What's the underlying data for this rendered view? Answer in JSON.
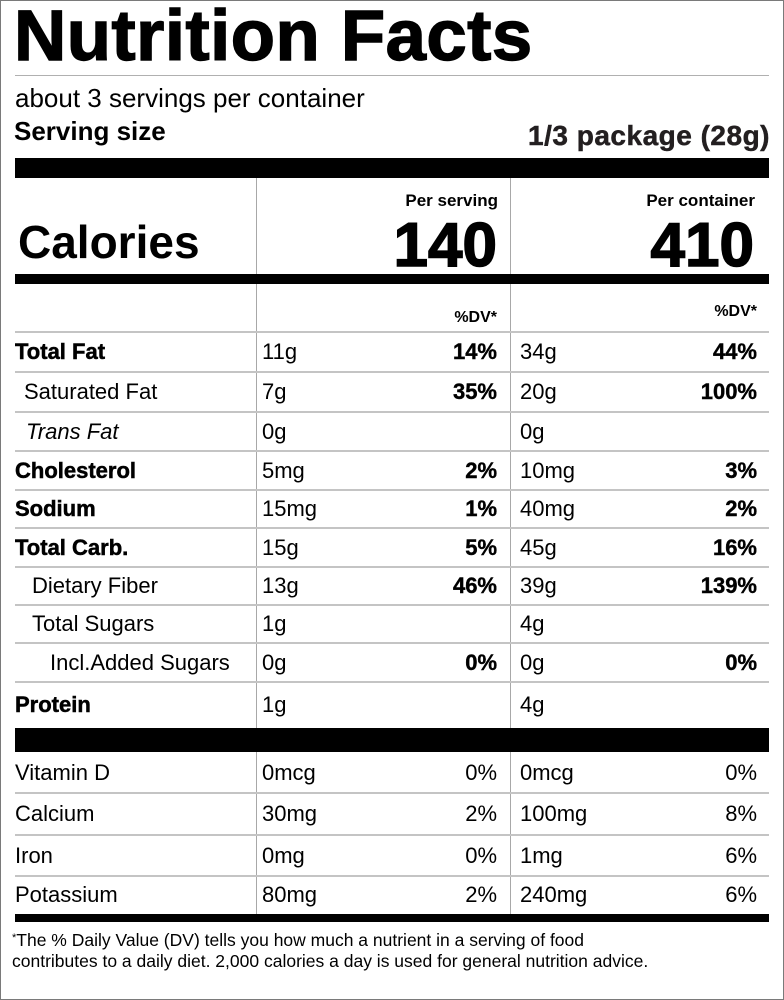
{
  "title": "Nutrition Facts",
  "servings_per_container": "about 3 servings per container",
  "serving_size": {
    "label": "Serving size",
    "value": "1/3 package (28g)"
  },
  "calories": {
    "label": "Calories",
    "per_serving_header": "Per serving",
    "per_container_header": "Per container",
    "per_serving": "140",
    "per_container": "410"
  },
  "dv_header": {
    "per_serving": "%DV*",
    "per_container": "%DV*"
  },
  "nutrients": [
    {
      "name": "Total Fat",
      "style": "bold",
      "indent": 0,
      "serving_amount": "11g",
      "serving_dv": "14%",
      "container_amount": "34g",
      "container_dv": "44%"
    },
    {
      "name": "Saturated Fat",
      "style": "regular",
      "indent": 1,
      "serving_amount": "7g",
      "serving_dv": "35%",
      "container_amount": "20g",
      "container_dv": "100%"
    },
    {
      "name": "Trans Fat",
      "style": "italic",
      "indent": 1,
      "serving_amount": "0g",
      "serving_dv": "",
      "container_amount": "0g",
      "container_dv": ""
    },
    {
      "name": "Cholesterol",
      "style": "bold",
      "indent": 0,
      "serving_amount": "5mg",
      "serving_dv": "2%",
      "container_amount": "10mg",
      "container_dv": "3%"
    },
    {
      "name": "Sodium",
      "style": "bold",
      "indent": 0,
      "serving_amount": "15mg",
      "serving_dv": "1%",
      "container_amount": "40mg",
      "container_dv": "2%"
    },
    {
      "name": "Total Carb.",
      "style": "bold",
      "indent": 0,
      "serving_amount": "15g",
      "serving_dv": "5%",
      "container_amount": "45g",
      "container_dv": "16%"
    },
    {
      "name": "Dietary Fiber",
      "style": "regular",
      "indent": 2,
      "serving_amount": "13g",
      "serving_dv": "46%",
      "container_amount": "39g",
      "container_dv": "139%"
    },
    {
      "name": "Total Sugars",
      "style": "regular",
      "indent": 2,
      "serving_amount": "1g",
      "serving_dv": "",
      "container_amount": "4g",
      "container_dv": ""
    },
    {
      "name": "Incl.Added Sugars",
      "style": "regular",
      "indent": 3,
      "serving_amount": "0g",
      "serving_dv": "0%",
      "container_amount": "0g",
      "container_dv": "0%"
    },
    {
      "name": "Protein",
      "style": "bold",
      "indent": 0,
      "serving_amount": "1g",
      "serving_dv": "",
      "container_amount": "4g",
      "container_dv": ""
    }
  ],
  "vitamins": [
    {
      "name": "Vitamin D",
      "serving_amount": "0mcg",
      "serving_dv": "0%",
      "container_amount": "0mcg",
      "container_dv": "0%"
    },
    {
      "name": "Calcium",
      "serving_amount": "30mg",
      "serving_dv": "2%",
      "container_amount": "100mg",
      "container_dv": "8%"
    },
    {
      "name": "Iron",
      "serving_amount": "0mg",
      "serving_dv": "0%",
      "container_amount": "1mg",
      "container_dv": "6%"
    },
    {
      "name": "Potassium",
      "serving_amount": "80mg",
      "serving_dv": "2%",
      "container_amount": "240mg",
      "container_dv": "6%"
    }
  ],
  "footnote": {
    "marker": "*",
    "text": "The % Daily Value (DV) tells you how much a nutrient in a serving of food contributes to a daily diet. 2,000 calories a day is used for general nutrition advice."
  }
}
